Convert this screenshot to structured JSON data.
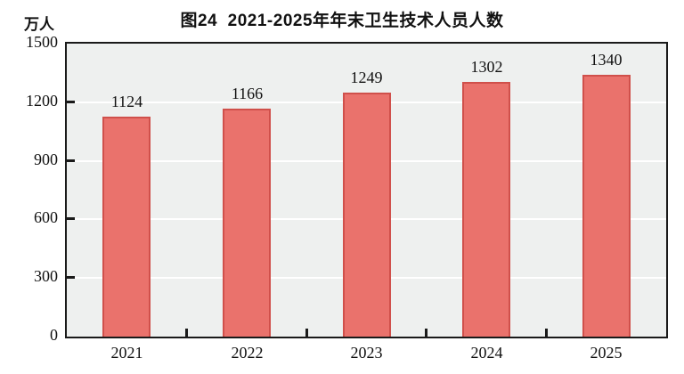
{
  "page": {
    "unit_label": "万人"
  },
  "chart_data": {
    "type": "bar",
    "title": "图24  2021-2025年年末卫生技术人员人数",
    "unit_label": "万人",
    "categories": [
      "2021",
      "2022",
      "2023",
      "2024",
      "2025"
    ],
    "values": [
      1124,
      1166,
      1249,
      1302,
      1340
    ],
    "xlabel": "",
    "ylabel": "万人",
    "ylim": [
      0,
      1500
    ],
    "yticks": [
      0,
      300,
      600,
      900,
      1200,
      1500
    ],
    "grid": true,
    "legend_position": "none",
    "colors": {
      "bar_fill": "#ea726c",
      "bar_border": "#d0504b",
      "plot_background": "#eef0ef",
      "gridline": "#ffffff",
      "axis_frame": "#1a1a1a",
      "text": "#111111",
      "page_background": "#ffffff"
    }
  }
}
